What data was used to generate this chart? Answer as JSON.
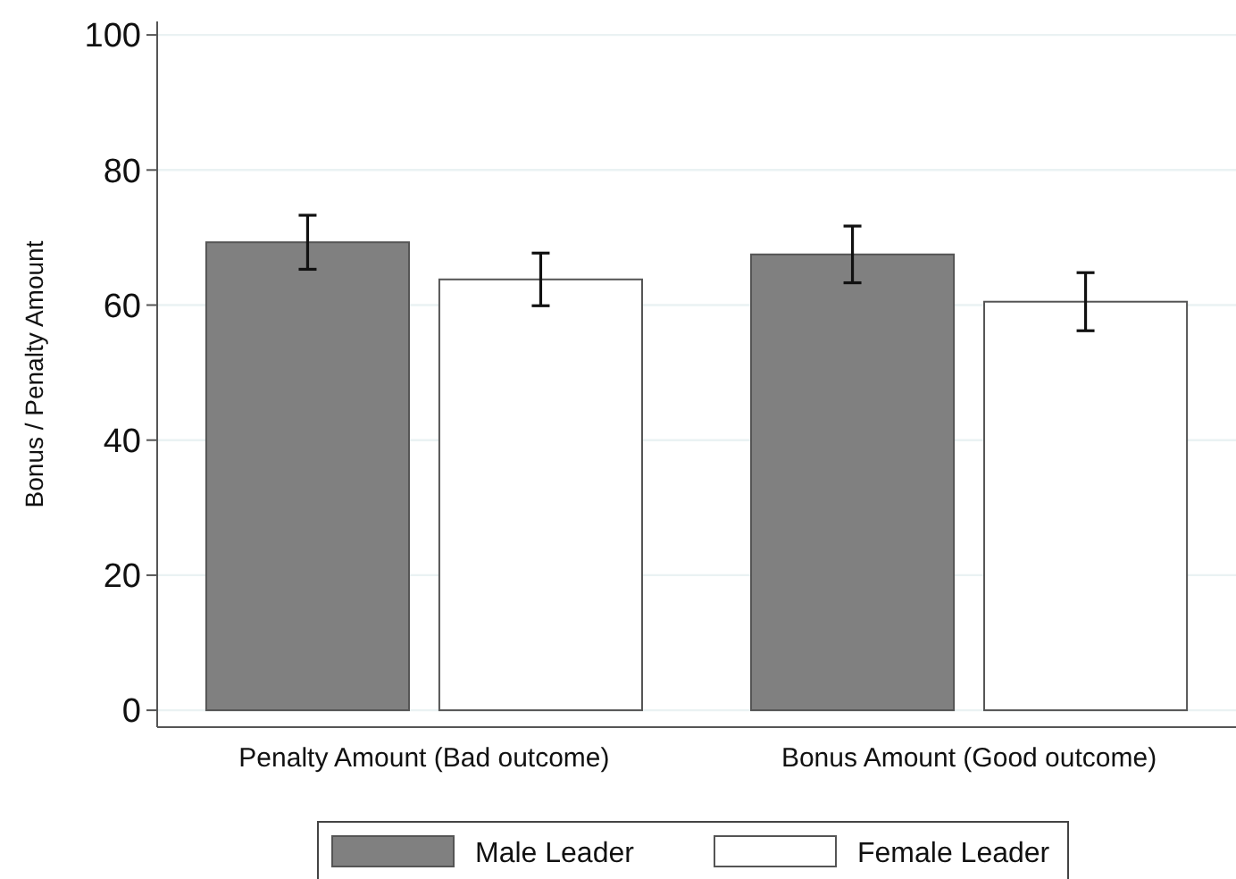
{
  "chart_data": {
    "type": "bar",
    "ylabel": "Bonus / Penalty Amount",
    "categories": [
      "Penalty Amount (Bad outcome)",
      "Bonus Amount (Good outcome)"
    ],
    "series": [
      {
        "name": "Male Leader",
        "color": "#808080",
        "values": [
          69.3,
          67.5
        ],
        "errors": [
          4,
          4.2
        ]
      },
      {
        "name": "Female Leader",
        "color": "#ffffff",
        "values": [
          63.8,
          60.5
        ],
        "errors": [
          3.9,
          4.3
        ]
      }
    ],
    "ylim": [
      -2.5,
      102
    ],
    "yticks": [
      0,
      20,
      40,
      60,
      80,
      100
    ],
    "grid": "y",
    "legend": "bottom"
  }
}
